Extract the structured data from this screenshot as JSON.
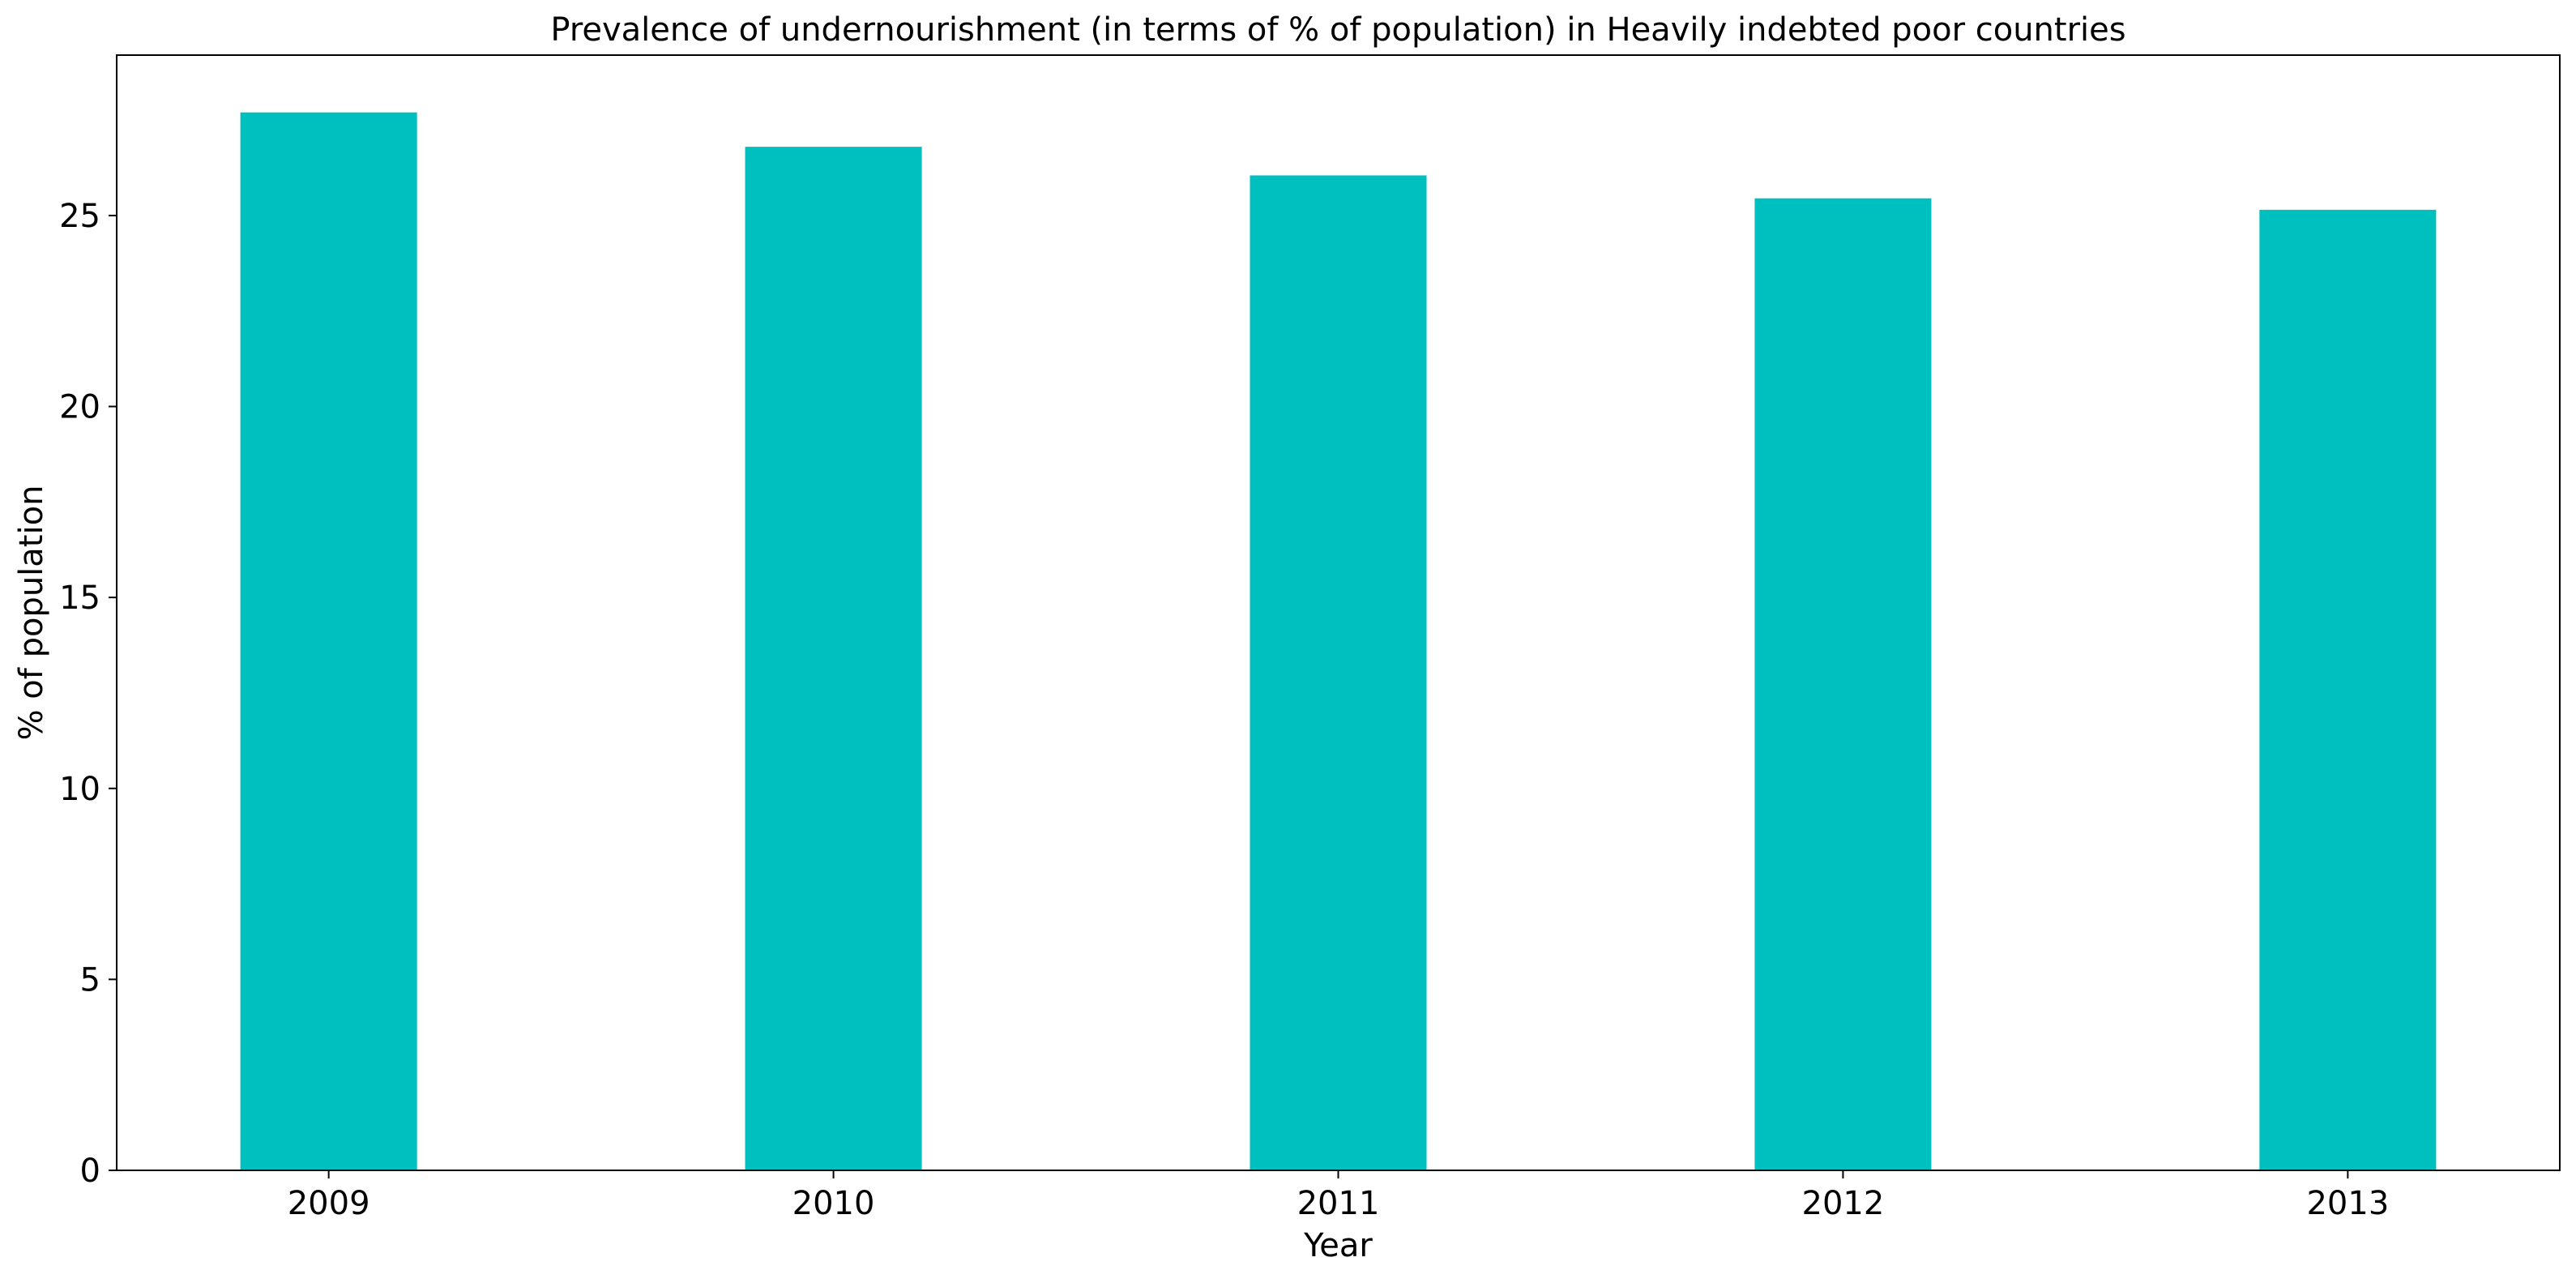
{
  "chart_data": {
    "type": "bar",
    "title": "Prevalence of undernourishment (in terms of % of population) in Heavily indebted poor countries",
    "xlabel": "Year",
    "ylabel": "% of population",
    "categories": [
      "2009",
      "2010",
      "2011",
      "2012",
      "2013"
    ],
    "values": [
      27.7,
      26.8,
      26.05,
      25.45,
      25.15
    ],
    "ylim": [
      0,
      29.2
    ],
    "yticks": [
      0,
      5,
      10,
      15,
      20,
      25
    ],
    "bar_color": "#00BFBF",
    "grid": false,
    "legend": "none"
  }
}
